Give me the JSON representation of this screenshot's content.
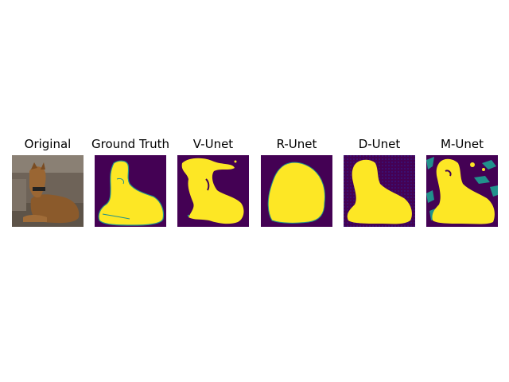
{
  "panels": [
    {
      "title": "Original",
      "kind": "photo"
    },
    {
      "title": "Ground Truth",
      "kind": "mask"
    },
    {
      "title": "V-Unet",
      "kind": "mask"
    },
    {
      "title": "R-Unet",
      "kind": "mask"
    },
    {
      "title": "D-Unet",
      "kind": "mask"
    },
    {
      "title": "M-Unet",
      "kind": "mask"
    }
  ],
  "colors": {
    "background": "#440154",
    "foreground": "#fde725",
    "boundary": "#21918c"
  }
}
